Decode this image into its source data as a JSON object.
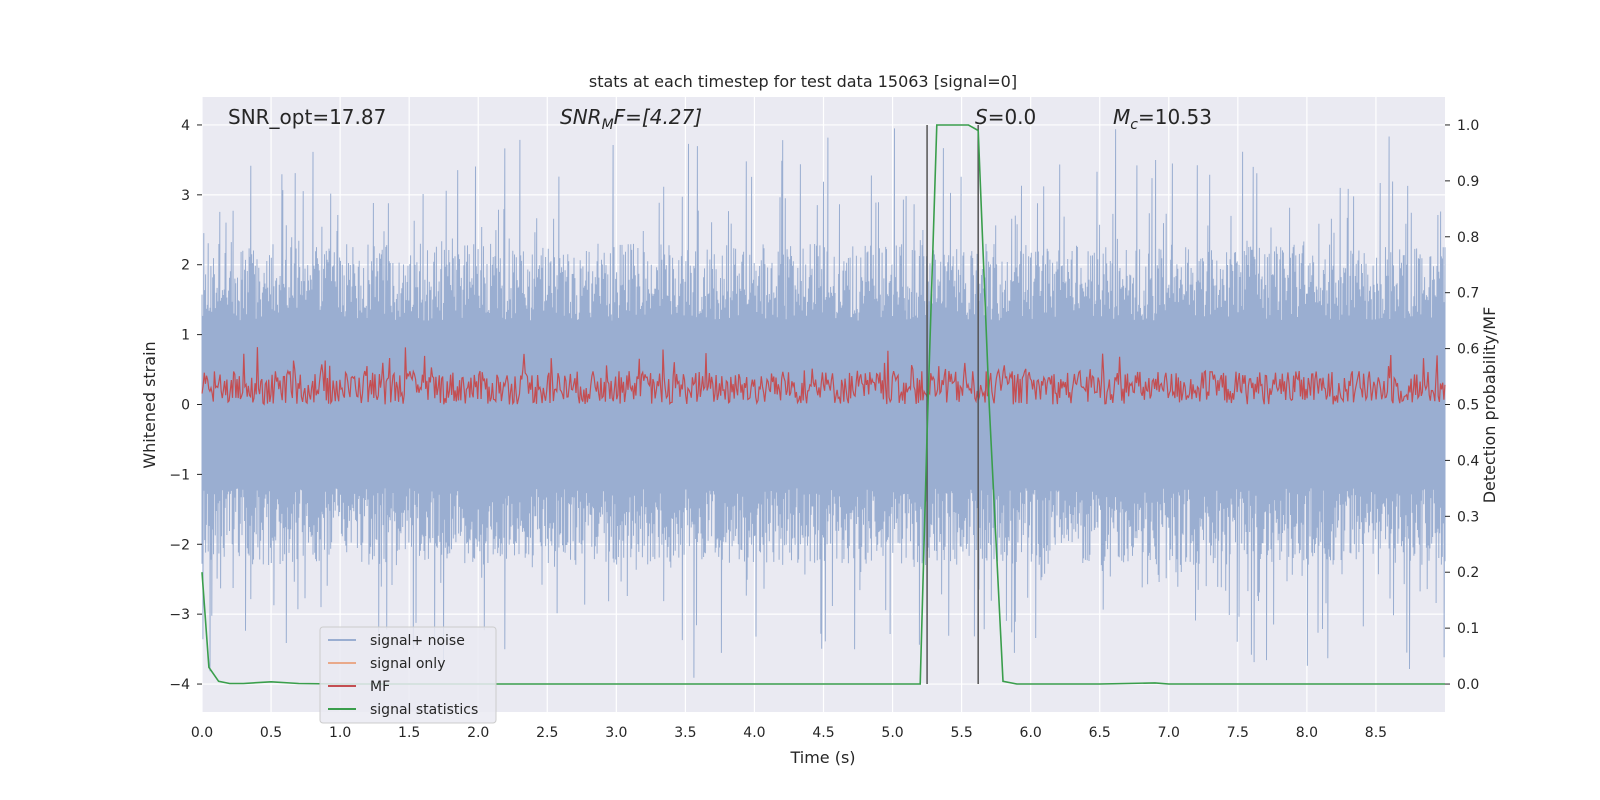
{
  "chart_data": {
    "type": "line",
    "title": "stats at each timestep for test data 15063 [signal=0]",
    "xlabel": "Time (s)",
    "ylabel": "Whitened strain",
    "y2label": "Detection probability/MF",
    "xlim": [
      0,
      9.0
    ],
    "ylim": [
      -4.4,
      4.4
    ],
    "y2lim": [
      -0.05,
      1.05
    ],
    "grid": true,
    "x_ticks": [
      "0.0",
      "0.5",
      "1.0",
      "1.5",
      "2.0",
      "2.5",
      "3.0",
      "3.5",
      "4.0",
      "4.5",
      "5.0",
      "5.5",
      "6.0",
      "6.5",
      "7.0",
      "7.5",
      "8.0",
      "8.5"
    ],
    "x_tick_values": [
      0,
      0.5,
      1.0,
      1.5,
      2.0,
      2.5,
      3.0,
      3.5,
      4.0,
      4.5,
      5.0,
      5.5,
      6.0,
      6.5,
      7.0,
      7.5,
      8.0,
      8.5
    ],
    "y_ticks": [
      "4",
      "3",
      "2",
      "1",
      "0",
      "−1",
      "−2",
      "−3",
      "−4"
    ],
    "y_tick_values": [
      4,
      3,
      2,
      1,
      0,
      -1,
      -2,
      -3,
      -4
    ],
    "y2_ticks": [
      "1.0",
      "0.9",
      "0.8",
      "0.7",
      "0.6",
      "0.5",
      "0.4",
      "0.3",
      "0.2",
      "0.1",
      "0.0"
    ],
    "y2_tick_values": [
      1.0,
      0.9,
      0.8,
      0.7,
      0.6,
      0.5,
      0.4,
      0.3,
      0.2,
      0.1,
      0.0
    ],
    "annotations": {
      "snr_opt": "SNR_opt=17.87",
      "snr_mf_main": "SNR",
      "snr_mf_sub": "M",
      "snr_mf_rest": "F=[4.27]",
      "s_var": "S",
      "s_rest": "=0.0",
      "mc_var": "M",
      "mc_sub": "c",
      "mc_rest": "=10.53"
    },
    "noise": {
      "name": "signal+ noise",
      "color": "#9aaed1",
      "approx_upper_range": [
        1.2,
        4.0
      ],
      "approx_lower_range": [
        -1.2,
        -4.0
      ]
    },
    "mf": {
      "name": "MF",
      "color": "#c44e52",
      "y2_range": [
        0.5,
        0.61
      ]
    },
    "signal_only": {
      "name": "signal only",
      "color": "#e9a98a"
    },
    "signal_statistics": {
      "name": "signal statistics",
      "color": "#3a9e4c",
      "x": [
        0.0,
        0.05,
        0.12,
        0.2,
        0.3,
        0.5,
        0.7,
        1.0,
        2.0,
        3.0,
        4.0,
        5.0,
        5.2,
        5.25,
        5.32,
        5.55,
        5.62,
        5.7,
        5.8,
        5.9,
        6.5,
        6.9,
        7.0,
        8.0,
        9.0
      ],
      "y": [
        0.2,
        0.03,
        0.005,
        0.001,
        0.001,
        0.004,
        0.001,
        0.0,
        0.0,
        0.0,
        0.0,
        0.0,
        0.0,
        0.45,
        1.0,
        1.0,
        0.99,
        0.5,
        0.005,
        0.0,
        0.0,
        0.002,
        0.0,
        0.0,
        0.0
      ]
    },
    "vertical_lines": {
      "color": "#555555",
      "x": [
        5.25,
        5.62
      ]
    },
    "legend": {
      "placement": "lower-left",
      "entries": [
        "signal+ noise",
        "signal only",
        "MF",
        "signal statistics"
      ]
    }
  }
}
